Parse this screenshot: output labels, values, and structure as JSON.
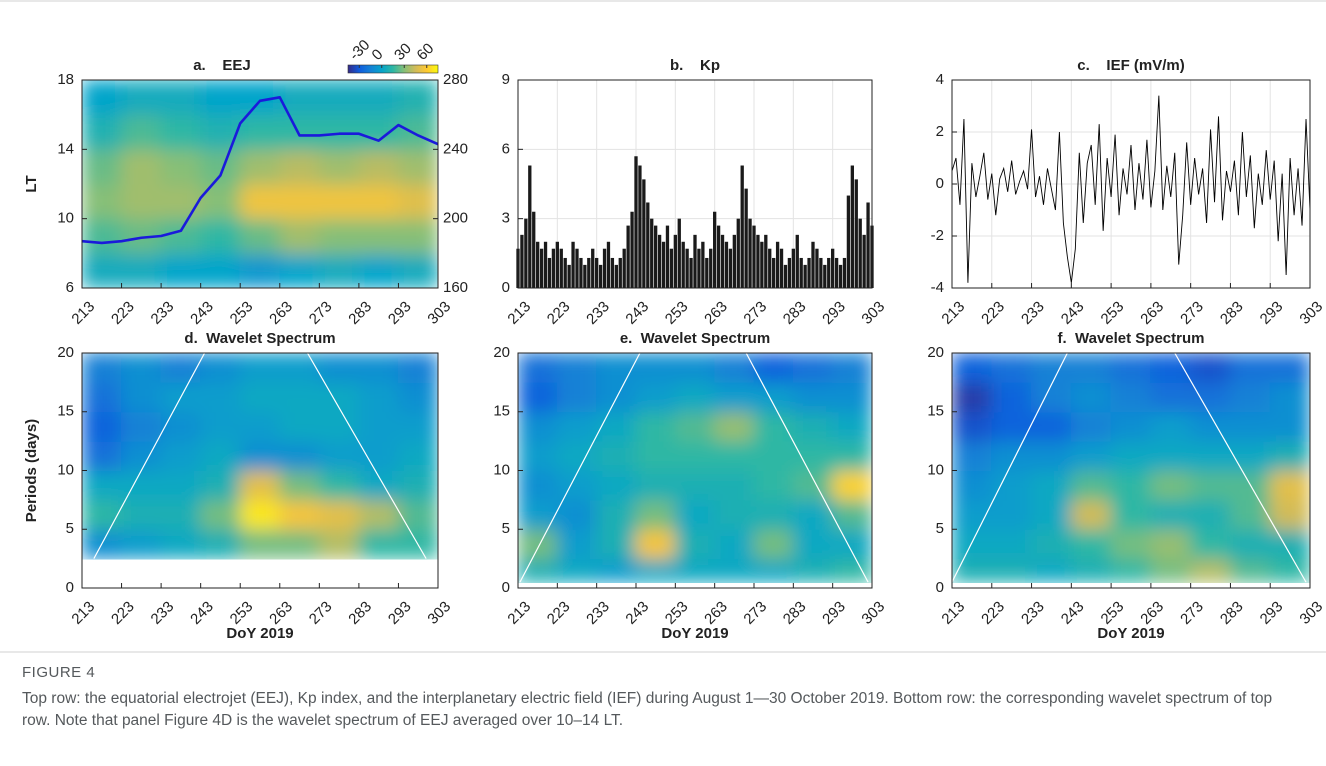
{
  "figure": {
    "label": "FIGURE 4",
    "caption": "Top row: the equatorial electrojet (EEJ), Kp index, and the interplanetary electric field (IEF) during August 1—30 October 2019. Bottom row: the corresponding wavelet spectrum of top row. Note that panel Figure 4D is the wavelet spectrum of EEJ averaged over 10–14 LT."
  },
  "chart_data": [
    {
      "type": "heatmap",
      "title": "a.    EEJ",
      "y_label": "LT",
      "colormap": "parula",
      "clim": [
        -45,
        75
      ],
      "colorbar_ticks": [
        -30,
        0,
        30,
        60
      ],
      "xlim": [
        213,
        303
      ],
      "xticks": [
        213,
        223,
        233,
        243,
        253,
        263,
        273,
        283,
        293,
        303
      ],
      "ylim": [
        6,
        18
      ],
      "yticks": [
        6,
        10,
        14,
        18
      ],
      "y2lim": [
        160,
        280
      ],
      "y2ticks": [
        160,
        200,
        240,
        280
      ],
      "x_edges": [
        213,
        223,
        233,
        243,
        253,
        263,
        273,
        283,
        293,
        303
      ],
      "y_edges": [
        6,
        8,
        10,
        12,
        14,
        16,
        18
      ],
      "z": [
        [
          5,
          5,
          0,
          0,
          -5,
          0,
          5,
          0,
          5
        ],
        [
          20,
          25,
          20,
          15,
          25,
          35,
          30,
          30,
          30
        ],
        [
          30,
          35,
          35,
          30,
          55,
          55,
          55,
          55,
          50
        ],
        [
          25,
          35,
          30,
          25,
          35,
          40,
          35,
          40,
          35
        ],
        [
          10,
          20,
          15,
          10,
          15,
          15,
          15,
          15,
          20
        ],
        [
          0,
          5,
          5,
          0,
          0,
          5,
          5,
          5,
          10
        ]
      ],
      "series": [
        {
          "color": "#1a1adb",
          "axis": "y2",
          "x": [
            213,
            218,
            223,
            228,
            233,
            238,
            243,
            248,
            253,
            258,
            263,
            268,
            273,
            278,
            283,
            288,
            293,
            298,
            303
          ],
          "values": [
            187,
            186,
            187,
            189,
            190,
            193,
            212,
            225,
            255,
            268,
            270,
            248,
            248,
            249,
            249,
            245,
            254,
            248,
            243
          ]
        }
      ]
    },
    {
      "type": "bar",
      "title": "b.    Kp",
      "color": "#1a1a1a",
      "grid": true,
      "xlim": [
        213,
        303
      ],
      "xticks": [
        213,
        223,
        233,
        243,
        253,
        263,
        273,
        283,
        293,
        303
      ],
      "ylim": [
        0,
        9
      ],
      "yticks": [
        0,
        3,
        6,
        9
      ],
      "x": [
        213,
        214,
        215,
        216,
        217,
        218,
        219,
        220,
        221,
        222,
        223,
        224,
        225,
        226,
        227,
        228,
        229,
        230,
        231,
        232,
        233,
        234,
        235,
        236,
        237,
        238,
        239,
        240,
        241,
        242,
        243,
        244,
        245,
        246,
        247,
        248,
        249,
        250,
        251,
        252,
        253,
        254,
        255,
        256,
        257,
        258,
        259,
        260,
        261,
        262,
        263,
        264,
        265,
        266,
        267,
        268,
        269,
        270,
        271,
        272,
        273,
        274,
        275,
        276,
        277,
        278,
        279,
        280,
        281,
        282,
        283,
        284,
        285,
        286,
        287,
        288,
        289,
        290,
        291,
        292,
        293,
        294,
        295,
        296,
        297,
        298,
        299,
        300,
        301,
        302,
        303
      ],
      "values": [
        1.7,
        2.3,
        3.0,
        5.3,
        3.3,
        2.0,
        1.7,
        2.0,
        1.3,
        1.7,
        2.0,
        1.7,
        1.3,
        1.0,
        2.0,
        1.7,
        1.3,
        1.0,
        1.3,
        1.7,
        1.3,
        1.0,
        1.7,
        2.0,
        1.3,
        1.0,
        1.3,
        1.7,
        2.7,
        3.3,
        5.7,
        5.3,
        4.7,
        3.7,
        3.0,
        2.7,
        2.3,
        2.0,
        2.7,
        1.7,
        2.3,
        3.0,
        2.0,
        1.7,
        1.3,
        2.3,
        1.7,
        2.0,
        1.3,
        1.7,
        3.3,
        2.7,
        2.3,
        2.0,
        1.7,
        2.3,
        3.0,
        5.3,
        4.3,
        3.0,
        2.7,
        2.3,
        2.0,
        2.3,
        1.7,
        1.3,
        2.0,
        1.7,
        1.0,
        1.3,
        1.7,
        2.3,
        1.3,
        1.0,
        1.3,
        2.0,
        1.7,
        1.3,
        1.0,
        1.3,
        1.7,
        1.3,
        1.0,
        1.3,
        4.0,
        5.3,
        4.7,
        3.0,
        2.3,
        3.7,
        2.7
      ]
    },
    {
      "type": "line",
      "title": "c.    IEF (mV/m)",
      "color": "#000000",
      "grid": true,
      "xlim": [
        213,
        303
      ],
      "xticks": [
        213,
        223,
        233,
        243,
        253,
        263,
        273,
        283,
        293,
        303
      ],
      "ylim": [
        -4,
        4
      ],
      "yticks": [
        -4,
        -2,
        0,
        2,
        4
      ],
      "x": [
        213,
        214,
        215,
        216,
        217,
        218,
        219,
        220,
        221,
        222,
        223,
        224,
        225,
        226,
        227,
        228,
        229,
        230,
        231,
        232,
        233,
        234,
        235,
        236,
        237,
        238,
        239,
        240,
        241,
        242,
        243,
        244,
        245,
        246,
        247,
        248,
        249,
        250,
        251,
        252,
        253,
        254,
        255,
        256,
        257,
        258,
        259,
        260,
        261,
        262,
        263,
        264,
        265,
        266,
        267,
        268,
        269,
        270,
        271,
        272,
        273,
        274,
        275,
        276,
        277,
        278,
        279,
        280,
        281,
        282,
        283,
        284,
        285,
        286,
        287,
        288,
        289,
        290,
        291,
        292,
        293,
        294,
        295,
        296,
        297,
        298,
        299,
        300,
        301,
        302,
        303
      ],
      "values": [
        0.5,
        1.0,
        -0.8,
        2.5,
        -3.8,
        0.8,
        -0.5,
        0.3,
        1.2,
        -0.6,
        0.4,
        -1.2,
        0.2,
        0.6,
        -0.3,
        0.9,
        -0.4,
        0.1,
        0.5,
        -0.2,
        2.1,
        -0.5,
        0.3,
        -0.8,
        0.6,
        -0.2,
        -1.0,
        2.0,
        -1.5,
        -2.8,
        -3.8,
        -2.5,
        1.2,
        -1.5,
        0.8,
        1.5,
        -0.8,
        2.3,
        -1.8,
        1.0,
        -0.5,
        1.9,
        -1.2,
        0.6,
        -0.4,
        1.5,
        -1.0,
        0.8,
        -0.6,
        1.7,
        -0.9,
        0.5,
        3.4,
        -1.0,
        0.7,
        -0.5,
        1.2,
        -3.1,
        -1.2,
        1.6,
        -0.8,
        1.0,
        -0.4,
        0.6,
        -1.5,
        2.1,
        -0.7,
        2.6,
        -1.4,
        0.5,
        -0.3,
        0.9,
        -1.2,
        2.0,
        -0.5,
        1.1,
        -1.7,
        0.4,
        -0.8,
        1.3,
        -0.6,
        0.9,
        -2.2,
        0.4,
        -3.5,
        1.0,
        -1.2,
        0.6,
        -1.6,
        2.5,
        -1.0
      ]
    },
    {
      "type": "heatmap",
      "title": "d.  Wavelet Spectrum",
      "y_label": "Periods (days)",
      "x_label": "DoY 2019",
      "colormap": "parula",
      "clim": [
        0,
        1
      ],
      "xlim": [
        213,
        303
      ],
      "xticks": [
        213,
        223,
        233,
        243,
        253,
        263,
        273,
        283,
        293,
        303
      ],
      "ylim": [
        0,
        20
      ],
      "yticks": [
        0,
        5,
        10,
        15,
        20
      ],
      "x_edges": [
        213,
        223,
        233,
        243,
        253,
        263,
        273,
        283,
        293,
        303
      ],
      "y_edges": [
        2.5,
        5,
        7.5,
        10,
        12.5,
        15,
        17.5,
        20
      ],
      "z": [
        [
          0.3,
          0.35,
          0.4,
          0.45,
          0.6,
          0.6,
          0.7,
          0.5,
          0.5
        ],
        [
          0.5,
          0.45,
          0.45,
          0.6,
          0.95,
          0.85,
          0.8,
          0.7,
          0.55
        ],
        [
          0.4,
          0.4,
          0.4,
          0.45,
          0.8,
          0.6,
          0.5,
          0.4,
          0.45
        ],
        [
          0.2,
          0.3,
          0.35,
          0.4,
          0.3,
          0.3,
          0.35,
          0.35,
          0.4
        ],
        [
          0.15,
          0.25,
          0.3,
          0.35,
          0.35,
          0.4,
          0.4,
          0.35,
          0.35
        ],
        [
          0.2,
          0.3,
          0.35,
          0.35,
          0.4,
          0.4,
          0.4,
          0.35,
          0.3
        ],
        [
          0.25,
          0.3,
          0.25,
          0.3,
          0.35,
          0.35,
          0.3,
          0.3,
          0.25
        ]
      ],
      "coi": [
        {
          "x": [
            216,
            244
          ],
          "y": [
            2.5,
            20
          ]
        },
        {
          "x": [
            270,
            300
          ],
          "y": [
            20,
            2.5
          ]
        }
      ]
    },
    {
      "type": "heatmap",
      "title": "e.  Wavelet Spectrum",
      "x_label": "DoY 2019",
      "colormap": "parula",
      "clim": [
        0,
        1
      ],
      "xlim": [
        213,
        303
      ],
      "xticks": [
        213,
        223,
        233,
        243,
        253,
        263,
        273,
        283,
        293,
        303
      ],
      "ylim": [
        0,
        20
      ],
      "yticks": [
        0,
        5,
        10,
        15,
        20
      ],
      "x_edges": [
        213,
        223,
        233,
        243,
        253,
        263,
        273,
        283,
        293,
        303
      ],
      "y_edges": [
        0.5,
        2.5,
        5,
        7.5,
        10,
        12.5,
        15,
        17.5,
        20
      ],
      "z": [
        [
          0.45,
          0.4,
          0.35,
          0.4,
          0.4,
          0.4,
          0.4,
          0.45,
          0.5
        ],
        [
          0.6,
          0.35,
          0.45,
          0.85,
          0.45,
          0.4,
          0.6,
          0.4,
          0.4
        ],
        [
          0.35,
          0.3,
          0.45,
          0.6,
          0.4,
          0.45,
          0.45,
          0.4,
          0.55
        ],
        [
          0.3,
          0.35,
          0.4,
          0.45,
          0.45,
          0.45,
          0.5,
          0.55,
          0.9
        ],
        [
          0.35,
          0.4,
          0.45,
          0.5,
          0.5,
          0.5,
          0.5,
          0.5,
          0.5
        ],
        [
          0.3,
          0.35,
          0.4,
          0.5,
          0.55,
          0.65,
          0.5,
          0.45,
          0.4
        ],
        [
          0.15,
          0.25,
          0.3,
          0.35,
          0.4,
          0.35,
          0.35,
          0.3,
          0.3
        ],
        [
          0.2,
          0.25,
          0.3,
          0.3,
          0.3,
          0.25,
          0.15,
          0.2,
          0.25
        ]
      ],
      "coi": [
        {
          "x": [
            213.5,
            244
          ],
          "y": [
            0.5,
            20
          ]
        },
        {
          "x": [
            271,
            302
          ],
          "y": [
            20,
            0.5
          ]
        }
      ]
    },
    {
      "type": "heatmap",
      "title": "f.  Wavelet Spectrum",
      "x_label": "DoY 2019",
      "colormap": "parula",
      "clim": [
        0,
        1
      ],
      "xlim": [
        213,
        303
      ],
      "xticks": [
        213,
        223,
        233,
        243,
        253,
        263,
        273,
        283,
        293,
        303
      ],
      "ylim": [
        0,
        20
      ],
      "yticks": [
        0,
        5,
        10,
        15,
        20
      ],
      "x_edges": [
        213,
        223,
        233,
        243,
        253,
        263,
        273,
        283,
        293,
        303
      ],
      "y_edges": [
        0.5,
        2.5,
        5,
        7.5,
        10,
        12.5,
        15,
        17.5,
        20
      ],
      "z": [
        [
          0.45,
          0.45,
          0.4,
          0.45,
          0.5,
          0.6,
          0.7,
          0.55,
          0.5
        ],
        [
          0.4,
          0.4,
          0.45,
          0.5,
          0.6,
          0.65,
          0.5,
          0.45,
          0.45
        ],
        [
          0.35,
          0.35,
          0.4,
          0.75,
          0.5,
          0.45,
          0.45,
          0.55,
          0.75
        ],
        [
          0.3,
          0.35,
          0.4,
          0.55,
          0.5,
          0.6,
          0.55,
          0.55,
          0.8
        ],
        [
          0.25,
          0.3,
          0.3,
          0.35,
          0.4,
          0.4,
          0.4,
          0.4,
          0.45
        ],
        [
          0.1,
          0.15,
          0.15,
          0.25,
          0.3,
          0.35,
          0.3,
          0.3,
          0.3
        ],
        [
          0.05,
          0.15,
          0.25,
          0.3,
          0.25,
          0.2,
          0.2,
          0.25,
          0.3
        ],
        [
          0.15,
          0.2,
          0.25,
          0.25,
          0.2,
          0.15,
          0.1,
          0.2,
          0.2
        ]
      ],
      "coi": [
        {
          "x": [
            213,
            242
          ],
          "y": [
            0.5,
            20
          ]
        },
        {
          "x": [
            269,
            302
          ],
          "y": [
            20,
            0.5
          ]
        }
      ]
    }
  ]
}
